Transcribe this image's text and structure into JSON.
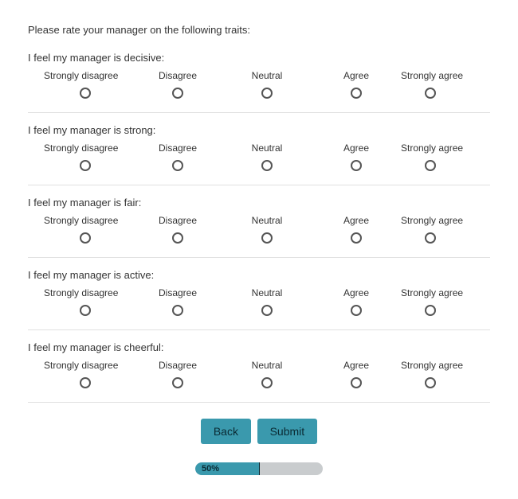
{
  "form": {
    "title": "Please rate your manager on the following traits:",
    "scale_labels": [
      "Strongly disagree",
      "Disagree",
      "Neutral",
      "Agree",
      "Strongly agree"
    ],
    "questions": [
      {
        "label": "I feel my manager is decisive:"
      },
      {
        "label": "I feel my manager is strong:"
      },
      {
        "label": "I feel my manager is fair:"
      },
      {
        "label": "I feel my manager is active:"
      },
      {
        "label": "I feel my manager is cheerful:"
      }
    ],
    "buttons": {
      "back": "Back",
      "submit": "Submit"
    },
    "progress": {
      "value": 50,
      "label": "50%"
    }
  },
  "style": {
    "accent_color": "#3a99ad",
    "progress_bg": "#c9ccce",
    "text_color": "#333333",
    "border_color": "#e0e0e0",
    "radio_border": "#555555"
  }
}
